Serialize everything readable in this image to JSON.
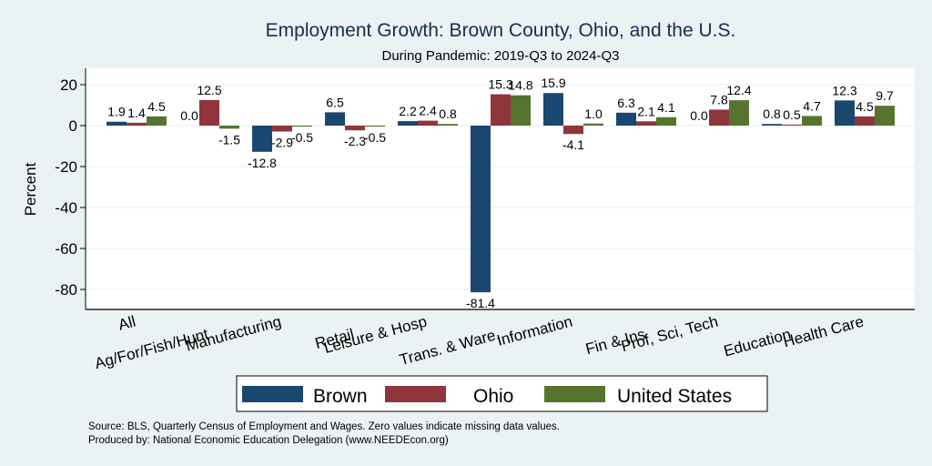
{
  "chart_data": {
    "type": "bar",
    "title": "Employment Growth: Brown County, Ohio, and the U.S.",
    "subtitle": "During Pandemic: 2019-Q3 to 2024-Q3",
    "xlabel": "",
    "ylabel": "Percent",
    "ylim": [
      -88,
      28
    ],
    "yticks": [
      20,
      0,
      -20,
      -40,
      -60,
      -80
    ],
    "grid": true,
    "legend_position": "bottom",
    "categories": [
      "All",
      "Ag/For/Fish/Hunt",
      "Manufacturing",
      "Retail",
      "Leisure & Hosp",
      "Trans. & Ware.",
      "Information",
      "Fin & Ins",
      "Prof, Sci, Tech",
      "Education",
      "Health Care"
    ],
    "series": [
      {
        "name": "Brown",
        "color": "#1a476f",
        "values": [
          1.9,
          0.0,
          -12.8,
          6.5,
          2.2,
          -81.4,
          15.9,
          6.3,
          0.0,
          0.8,
          12.3
        ]
      },
      {
        "name": "Ohio",
        "color": "#90353b",
        "values": [
          1.4,
          12.5,
          -2.9,
          -2.3,
          2.4,
          15.3,
          -4.1,
          2.1,
          7.8,
          0.5,
          4.5
        ]
      },
      {
        "name": "United States",
        "color": "#55752f",
        "values": [
          4.5,
          -1.5,
          -0.5,
          -0.5,
          0.8,
          14.8,
          1.0,
          4.1,
          12.4,
          4.7,
          9.7
        ]
      }
    ],
    "notes": [
      "Source: BLS, Quarterly Census of Employment and Wages. Zero values indicate missing data values.",
      "Produced by: National Economic Education Delegation (www.NEEDEcon.org)"
    ]
  }
}
